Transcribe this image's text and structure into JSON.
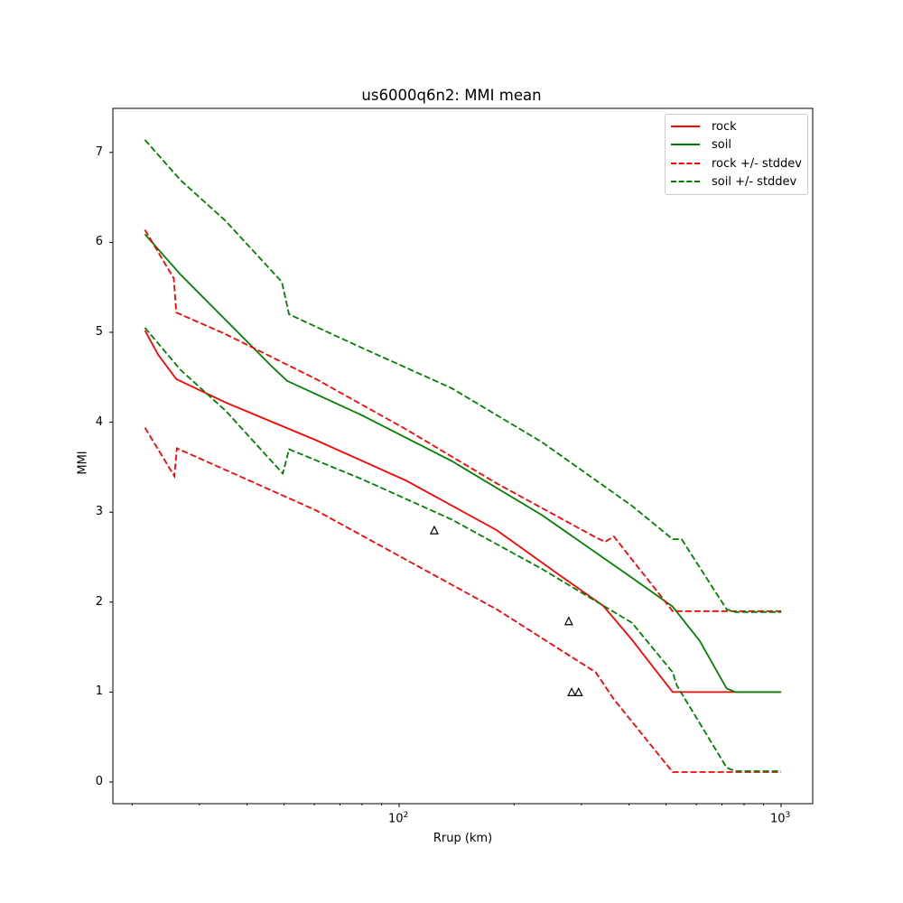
{
  "chart_data": {
    "type": "line",
    "title": "us6000q6n2: MMI mean",
    "xlabel": "Rrup (km)",
    "ylabel": "MMI",
    "xscale": "log",
    "xlim": [
      18,
      1200
    ],
    "ylim": [
      -0.24,
      7.48
    ],
    "yticks": [
      0,
      1,
      2,
      3,
      4,
      5,
      6,
      7
    ],
    "xticks": [
      {
        "value": 100,
        "label": "10",
        "exp": "2"
      },
      {
        "value": 1000,
        "label": "10",
        "exp": "3"
      }
    ],
    "grid": false,
    "legend_position": "upper right",
    "legend": [
      {
        "label": "rock",
        "color": "#ff0000",
        "style": "solid"
      },
      {
        "label": "soil",
        "color": "#008000",
        "style": "solid"
      },
      {
        "label": "rock +/- stddev",
        "color": "#ff0000",
        "style": "dashed"
      },
      {
        "label": "soil +/- stddev",
        "color": "#008000",
        "style": "dashed"
      }
    ],
    "series": [
      {
        "name": "rock",
        "color": "#ff0000",
        "style": "solid",
        "x": [
          21.6,
          23.4,
          26.1,
          35.1,
          60.6,
          104.4,
          180.0,
          263,
          342,
          407,
          520,
          1000
        ],
        "y": [
          5.02,
          4.75,
          4.48,
          4.22,
          3.8,
          3.35,
          2.8,
          2.3,
          1.96,
          1.58,
          1.0,
          1.0
        ]
      },
      {
        "name": "soil",
        "color": "#008000",
        "style": "solid",
        "x": [
          21.6,
          26.8,
          35.1,
          46.2,
          50.9,
          79.6,
          137.1,
          236.2,
          407,
          520,
          612,
          720,
          760,
          1000
        ],
        "y": [
          6.09,
          5.64,
          5.14,
          4.63,
          4.46,
          4.08,
          3.57,
          2.97,
          2.27,
          1.95,
          1.57,
          1.04,
          1.0,
          1.0
        ]
      },
      {
        "name": "rock + stddev",
        "color": "#ff0000",
        "style": "dashed",
        "x": [
          21.6,
          25.7,
          26.1,
          35.1,
          60.6,
          104.4,
          180.0,
          327,
          346,
          365,
          520,
          1000
        ],
        "y": [
          6.14,
          5.6,
          5.22,
          4.98,
          4.48,
          3.92,
          3.32,
          2.72,
          2.67,
          2.73,
          1.9,
          1.9
        ]
      },
      {
        "name": "rock - stddev",
        "color": "#ff0000",
        "style": "dashed",
        "x": [
          21.6,
          25.8,
          26.2,
          35.1,
          60.6,
          104.4,
          180.0,
          327,
          365,
          520,
          1000
        ],
        "y": [
          3.94,
          3.4,
          3.71,
          3.47,
          3.02,
          2.47,
          1.92,
          1.22,
          0.92,
          0.11,
          0.11
        ]
      },
      {
        "name": "soil + stddev",
        "color": "#008000",
        "style": "dashed",
        "x": [
          21.6,
          26.8,
          35.1,
          49.3,
          51.5,
          79.6,
          137.1,
          236.2,
          407,
          520,
          549,
          720,
          760,
          1000
        ],
        "y": [
          7.14,
          6.69,
          6.24,
          5.56,
          5.2,
          4.83,
          4.38,
          3.78,
          3.07,
          2.7,
          2.7,
          1.92,
          1.89,
          1.89
        ]
      },
      {
        "name": "soil - stddev",
        "color": "#008000",
        "style": "dashed",
        "x": [
          21.6,
          26.8,
          35.1,
          49.6,
          51.5,
          79.6,
          137.1,
          236.2,
          407,
          520,
          534,
          720,
          760,
          1000
        ],
        "y": [
          5.05,
          4.58,
          4.13,
          3.43,
          3.7,
          3.37,
          2.92,
          2.37,
          1.77,
          1.22,
          1.07,
          0.16,
          0.12,
          0.12
        ]
      }
    ],
    "observations": {
      "marker": "triangle-open",
      "color": "#000000",
      "x": [
        123.6,
        278,
        283,
        295
      ],
      "y": [
        2.8,
        1.79,
        1.0,
        1.0
      ]
    }
  }
}
